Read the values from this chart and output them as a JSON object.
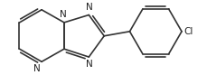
{
  "bg_color": "#ffffff",
  "line_color": "#333333",
  "line_width": 1.2,
  "font_size": 7.5,
  "bond_color": "#333333",
  "cl_label": "Cl",
  "n_label": "N"
}
